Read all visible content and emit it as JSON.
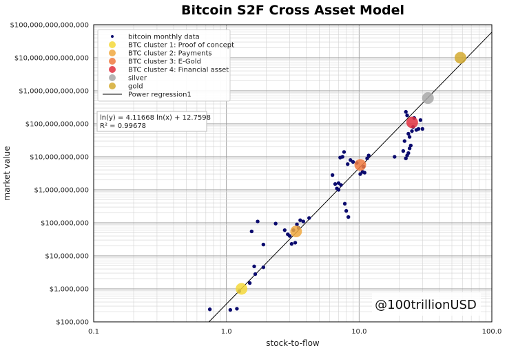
{
  "chart_data": {
    "type": "scatter",
    "title": "Bitcoin S2F Cross Asset Model",
    "xlabel": "stock-to-flow",
    "ylabel": "market value",
    "xscale": "log",
    "yscale": "log",
    "xlim": [
      0.1,
      100
    ],
    "ylim": [
      100000,
      100000000000000
    ],
    "grid": true,
    "legend_position": "top-left",
    "x_ticks": [
      "0.1",
      "1.0",
      "10.0",
      "100.0"
    ],
    "y_ticks": [
      "$100,000",
      "$1,000,000",
      "$10,000,000",
      "$100,000,000",
      "$1,000,000,000",
      "$10,000,000,000",
      "$100,000,000,000",
      "$1,000,000,000,000",
      "$10,000,000,000,000",
      "$100,000,000,000,000"
    ],
    "equation_lines": [
      "ln(y) = 4.11668 ln(x) + 12.7598",
      "R² = 0.99678"
    ],
    "watermark": "@100trillionUSD",
    "regression": {
      "name": "Power regression1",
      "slope": 4.11668,
      "intercept": 12.7598,
      "color": "#000000"
    },
    "series": [
      {
        "name": "bitcoin monthly data",
        "color": "#0b0b6e",
        "kind": "dot",
        "points": [
          [
            0.75,
            240000
          ],
          [
            1.07,
            230000
          ],
          [
            1.2,
            250000
          ],
          [
            1.25,
            850000
          ],
          [
            1.5,
            1500000
          ],
          [
            1.65,
            2800000
          ],
          [
            1.62,
            4800000
          ],
          [
            1.9,
            4500000
          ],
          [
            1.9,
            22000000
          ],
          [
            1.55,
            55000000
          ],
          [
            1.72,
            110000000
          ],
          [
            2.35,
            95000000
          ],
          [
            2.75,
            60000000
          ],
          [
            2.9,
            45000000
          ],
          [
            3.0,
            40000000
          ],
          [
            3.1,
            23000000
          ],
          [
            3.3,
            25000000
          ],
          [
            3.2,
            60000000
          ],
          [
            3.5,
            70000000
          ],
          [
            3.6,
            120000000
          ],
          [
            3.8,
            110000000
          ],
          [
            4.2,
            140000000
          ],
          [
            3.4,
            90000000
          ],
          [
            6.3,
            2800000000
          ],
          [
            6.6,
            1500000000
          ],
          [
            6.8,
            1100000000
          ],
          [
            7.0,
            1600000000
          ],
          [
            7.2,
            9500000000
          ],
          [
            7.5,
            10000000000
          ],
          [
            7.7,
            14000000000
          ],
          [
            7.0,
            1000000000
          ],
          [
            7.3,
            1400000000
          ],
          [
            7.8,
            380000000
          ],
          [
            8.0,
            230000000
          ],
          [
            8.3,
            150000000
          ],
          [
            8.2,
            6000000000
          ],
          [
            8.6,
            8000000000
          ],
          [
            9.0,
            7000000000
          ],
          [
            9.6,
            6500000000
          ],
          [
            10.2,
            3000000000
          ],
          [
            10.6,
            3500000000
          ],
          [
            11.0,
            3300000000
          ],
          [
            11.5,
            9000000000
          ],
          [
            11.8,
            11000000000
          ],
          [
            10.8,
            5000000000
          ],
          [
            18.5,
            10000000000
          ],
          [
            21.5,
            15000000000
          ],
          [
            22.0,
            30000000000
          ],
          [
            22.5,
            9000000000
          ],
          [
            23.0,
            11000000000
          ],
          [
            23.5,
            13000000000
          ],
          [
            24.0,
            18000000000
          ],
          [
            24.5,
            22000000000
          ],
          [
            25.0,
            60000000000
          ],
          [
            25.5,
            80000000000
          ],
          [
            26.0,
            150000000000
          ],
          [
            27.0,
            65000000000
          ],
          [
            28.0,
            70000000000
          ],
          [
            29.0,
            130000000000
          ],
          [
            30.0,
            70000000000
          ],
          [
            22.5,
            230000000000
          ],
          [
            23.0,
            180000000000
          ],
          [
            23.5,
            50000000000
          ],
          [
            24.0,
            40000000000
          ]
        ]
      },
      {
        "name": "BTC cluster 1: Proof of concept",
        "color": "#f5d83a",
        "kind": "cluster",
        "points": [
          [
            1.3,
            1000000
          ]
        ]
      },
      {
        "name": "BTC cluster 2: Payments",
        "color": "#f0a840",
        "kind": "cluster",
        "points": [
          [
            3.35,
            55000000
          ]
        ]
      },
      {
        "name": "BTC cluster 3: E-Gold",
        "color": "#f07a40",
        "kind": "cluster",
        "points": [
          [
            10.2,
            5700000000
          ]
        ]
      },
      {
        "name": "BTC cluster 4: Financial asset",
        "color": "#e03040",
        "kind": "cluster",
        "points": [
          [
            25.1,
            110000000000
          ]
        ]
      },
      {
        "name": "silver",
        "color": "#a8a8a8",
        "kind": "cluster",
        "points": [
          [
            33,
            600000000000
          ]
        ]
      },
      {
        "name": "gold",
        "color": "#d4aa30",
        "kind": "cluster",
        "points": [
          [
            58,
            10000000000000
          ]
        ]
      }
    ]
  }
}
